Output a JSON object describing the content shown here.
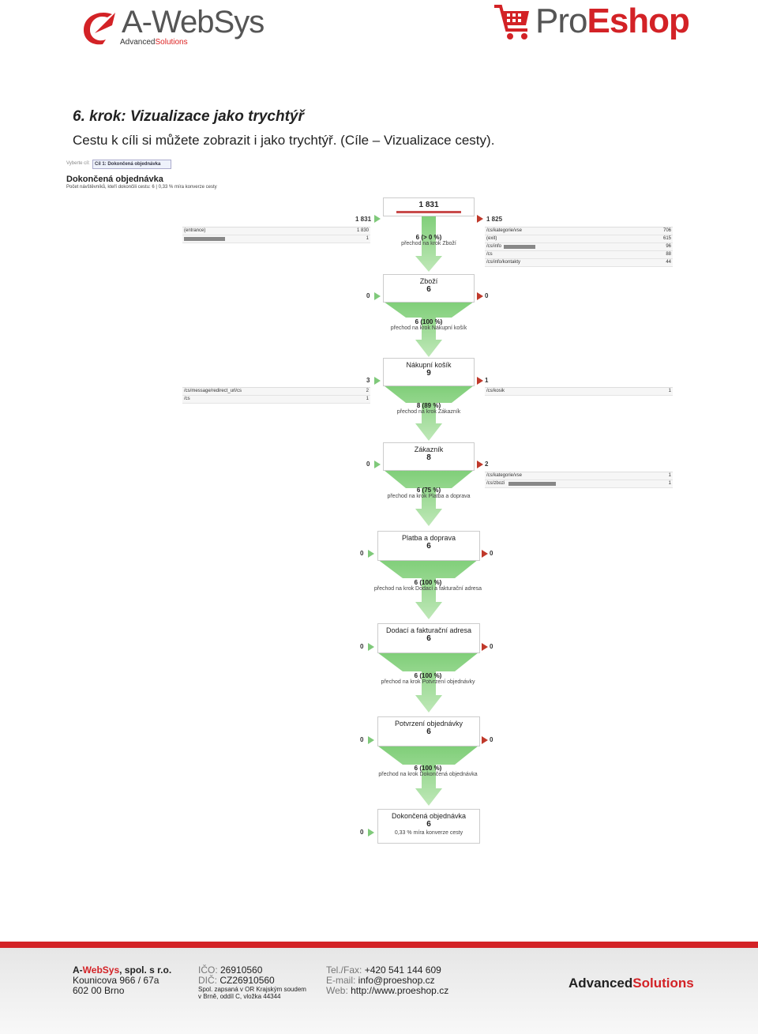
{
  "header": {
    "left_logo": {
      "name_a": "A-",
      "name_b": "WebSys",
      "sub_a": "Advanced",
      "sub_b": "Solutions"
    },
    "right_logo": {
      "pro": "Pro",
      "eshop": "Eshop"
    }
  },
  "content": {
    "heading": "6. krok: Vizualizace jako trychtýř",
    "intro": "Cestu k cíli si můžete zobrazit i jako trychtýř. (Cíle – Vizualizace cesty)."
  },
  "screenshot": {
    "selector_label": "Vyberte cíl:",
    "selector_value": "Cíl 1: Dokončená objednávka",
    "goal_title": "Dokončená objednávka",
    "goal_sub": "Počet návštěvníků, kteří dokončili cestu: 6 | 0,33 % míra konverze cesty",
    "first_step_value": "1 831",
    "entrance_total": "1 831",
    "exit_total": "1 825",
    "entrance_rows": [
      {
        "label": "(entrance)",
        "value": "1 830"
      },
      {
        "label": "",
        "value": "1"
      }
    ],
    "exit_rows": [
      {
        "label": "/cs/kategorie/vse",
        "value": "706"
      },
      {
        "label": "(exit)",
        "value": "615"
      },
      {
        "label": "/cs/info",
        "value": "96"
      },
      {
        "label": "/cs",
        "value": "88"
      },
      {
        "label": "/cs/info/kontakty",
        "value": "44"
      }
    ],
    "first_transition": {
      "value": "6 (> 0 %)",
      "text": "přechod na krok Zboží"
    },
    "steps": [
      {
        "name": "Zboží",
        "value": "6",
        "in": "0",
        "out": "0",
        "pct": "6 (100 %)",
        "next": "přechod na krok Nákupní košík"
      },
      {
        "name": "Nákupní košík",
        "value": "9",
        "in": "3",
        "out": "1",
        "pct": "8 (89 %)",
        "next": "přechod na krok Zákazník"
      },
      {
        "name": "Zákazník",
        "value": "8",
        "in": "0",
        "out": "2",
        "pct": "6 (75 %)",
        "next": "přechod na krok Platba a doprava"
      },
      {
        "name": "Platba a doprava",
        "value": "6",
        "in": "0",
        "out": "0",
        "pct": "6 (100 %)",
        "next": "přechod na krok Dodací a fakturační adresa"
      },
      {
        "name": "Dodací a fakturační adresa",
        "value": "6",
        "in": "0",
        "out": "0",
        "pct": "6 (100 %)",
        "next": "přechod na krok Potvrzení objednávky"
      },
      {
        "name": "Potvrzení objednávky",
        "value": "6",
        "in": "0",
        "out": "0",
        "pct": "6 (100 %)",
        "next": "přechod na krok Dokončená objednávka"
      },
      {
        "name": "Dokončená objednávka",
        "value": "6",
        "in": "0",
        "conv": "0,33 % míra konverze cesty"
      }
    ],
    "cart_in_rows": [
      {
        "label": "/cs/message/redirect_url/cs",
        "value": "2"
      },
      {
        "label": "/cs",
        "value": "1"
      }
    ],
    "cart_out_rows": [
      {
        "label": "/cs/kosik",
        "value": "1"
      }
    ],
    "customer_out_rows": [
      {
        "label": "/cs/kategorie/vse",
        "value": "1"
      },
      {
        "label": "/cs/zbozi",
        "value": "1"
      }
    ]
  },
  "footer": {
    "company_a": "A-",
    "company_b": "WebSys",
    "company_c": ", spol. s r.o.",
    "street": "Kounicova 966 / 67a",
    "city": "602 00  Brno",
    "ico_label": "IČO:",
    "ico": " 26910560",
    "dic_label": "DIČ:",
    "dic": " CZ26910560",
    "reg1": "Spol. zapsaná v OR Krajským soudem",
    "reg2": "v Brně, oddíl C, vložka 44344",
    "tel_label": "Tel./Fax:",
    "tel": " +420 541 144 609",
    "email_label": "E-mail:",
    "email": " info@proeshop.cz",
    "web_label": "Web:",
    "web": " http://www.proeshop.cz",
    "adv_a": "Advanced",
    "adv_b": "Solutions"
  },
  "colors": {
    "brand_red": "#d32226",
    "funnel_green": "#8fd68a",
    "arrow_green": "#7fc97a"
  }
}
